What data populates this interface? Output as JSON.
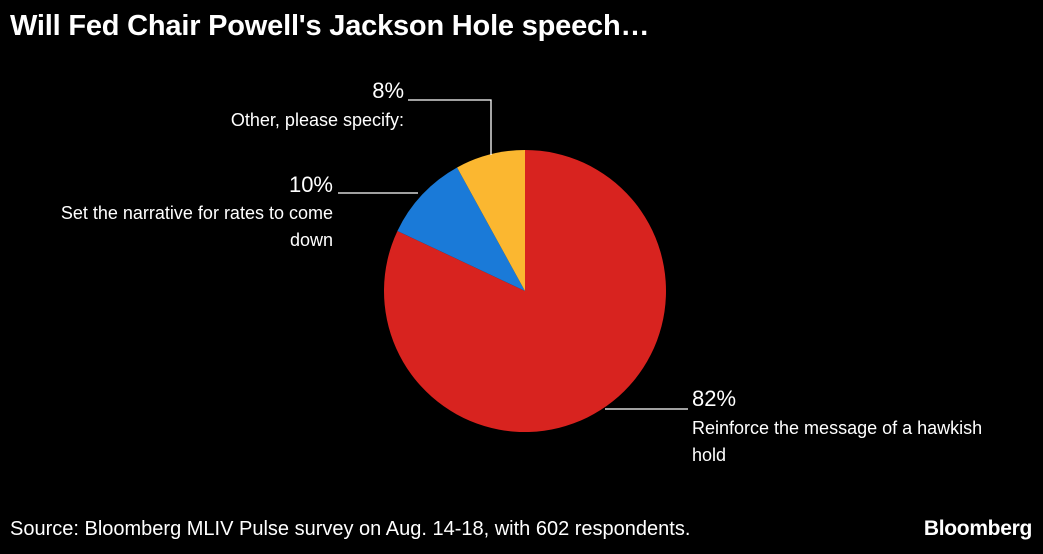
{
  "title": "Will Fed Chair Powell's Jackson Hole speech…",
  "footer": {
    "source": "Source: Bloomberg MLIV Pulse survey on Aug. 14-18, with 602 respondents.",
    "brand": "Bloomberg"
  },
  "chart_data": {
    "type": "pie",
    "title": "Will Fed Chair Powell's Jackson Hole speech…",
    "slices": [
      {
        "label_lines": [
          "Reinforce the message of a hawkish",
          "hold"
        ],
        "value": 82,
        "display": "82%",
        "color": "#d8231f"
      },
      {
        "label_lines": [
          "Set the narrative for rates to come",
          "down"
        ],
        "value": 10,
        "display": "10%",
        "color": "#1a7ad8"
      },
      {
        "label_lines": [
          "Other, please specify:"
        ],
        "value": 8,
        "display": "8%",
        "color": "#fbb730"
      }
    ],
    "start": "12 o'clock",
    "direction": "clockwise"
  }
}
